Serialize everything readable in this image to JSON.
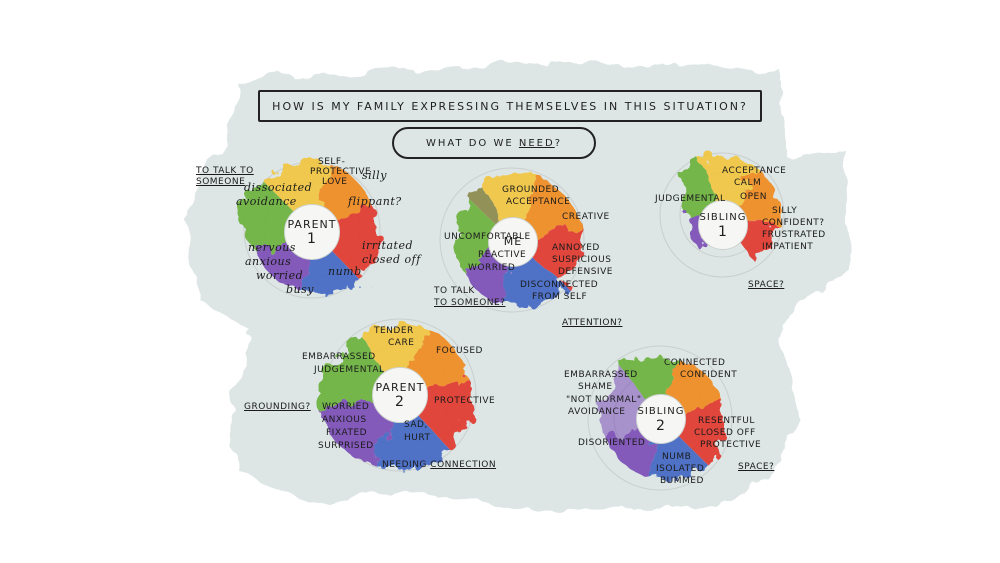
{
  "title": "How is my family expressing themselves in this situation?",
  "subtitle_prefix": "What do we",
  "subtitle_emphasis": "NEED",
  "subtitle_suffix": "?",
  "colors": {
    "wash": "#dfe6e6",
    "ink": "#1b1b1b",
    "yellow": "#f2c53d",
    "orange": "#f08a1c",
    "red": "#e2342b",
    "green": "#6bb23a",
    "blue": "#3f66c4",
    "purple": "#7a4bb6"
  },
  "wheels": {
    "parent1": {
      "name": "PARENT",
      "num": "1",
      "labels": [
        "SELF-",
        "PROTECTIVE",
        "LOVE",
        "dissociated",
        "avoidance",
        "silly",
        "flippant?",
        "irritated",
        "closed off",
        "numb",
        "nervous",
        "anxious",
        "worried",
        "busy"
      ],
      "need": "TO TALK TO SOMEONE"
    },
    "me": {
      "name": "ME",
      "labels": [
        "GROUNDED",
        "ACCEPTANCE",
        "CREATIVE",
        "UNCOMFORTABLE",
        "REACTIVE",
        "WORRIED",
        "ANNOYED",
        "SUSPICIOUS",
        "DEFENSIVE",
        "DISCONNECTED",
        "FROM SELF"
      ],
      "need_a": "TO TALK",
      "need_b": "TO SOMEONE?",
      "need2": "ATTENTION?"
    },
    "sibling1": {
      "name": "SIBLING",
      "num": "1",
      "labels": [
        "ACCEPTANCE",
        "CALM",
        "JUDGEMENTAL",
        "OPEN",
        "SILLY",
        "CONFIDENT?",
        "FRUSTRATED",
        "IMPATIENT"
      ],
      "need": "SPACE?"
    },
    "parent2": {
      "name": "PARENT",
      "num": "2",
      "labels": [
        "TENDER",
        "CARE",
        "FOCUSED",
        "EMBARRASSED",
        "JUDGEMENTAL",
        "PROTECTIVE",
        "WORRIED",
        "ANXIOUS",
        "FIXATED",
        "SURPRISED",
        "SAD,",
        "HURT"
      ],
      "need": "GROUNDING?",
      "need2_prefix": "NEEDING",
      "need2_emphasis": "CONNECTION"
    },
    "sibling2": {
      "name": "SIBLING",
      "num": "2",
      "labels": [
        "CONNECTED",
        "CONFIDENT",
        "EMBARRASSED",
        "SHAME",
        "\"NOT NORMAL\"",
        "AVOIDANCE",
        "RESENTFUL",
        "CLOSED OFF",
        "PROTECTIVE",
        "DISORIENTED",
        "NUMB",
        "ISOLATED",
        "BUMMED"
      ],
      "need": "SPACE?"
    }
  }
}
